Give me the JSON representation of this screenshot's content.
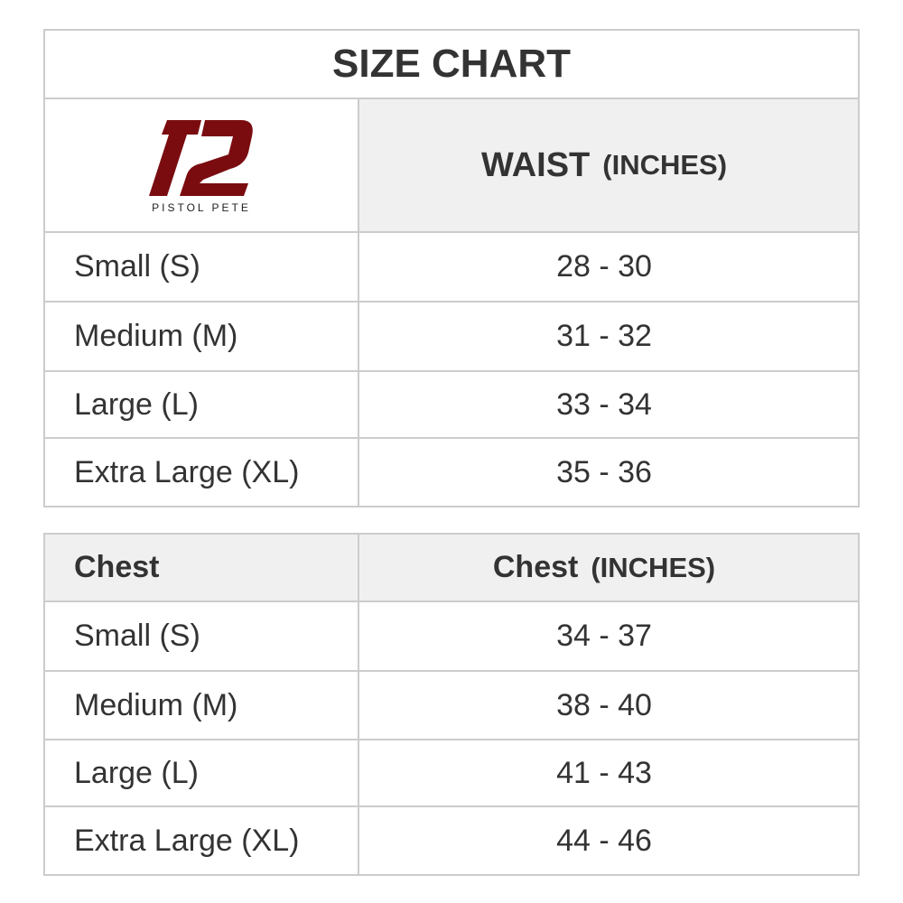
{
  "title": "SIZE CHART",
  "brand": {
    "name": "PISTOL PETE",
    "color": "#7a0c10"
  },
  "waist_table": {
    "header": {
      "label": "WAIST",
      "unit": "(INCHES)"
    },
    "rows": [
      {
        "size": "Small (S)",
        "value": "28 - 30"
      },
      {
        "size": "Medium (M)",
        "value": "31 - 32"
      },
      {
        "size": "Large (L)",
        "value": "33 - 34"
      },
      {
        "size": "Extra Large (XL)",
        "value": "35 - 36"
      }
    ]
  },
  "chest_table": {
    "header": {
      "col1": "Chest",
      "label": "Chest",
      "unit": "(INCHES)"
    },
    "rows": [
      {
        "size": "Small (S)",
        "value": "34 - 37"
      },
      {
        "size": "Medium (M)",
        "value": "38 - 40"
      },
      {
        "size": "Large (L)",
        "value": "41 - 43"
      },
      {
        "size": "Extra Large (XL)",
        "value": "44 - 46"
      }
    ]
  }
}
